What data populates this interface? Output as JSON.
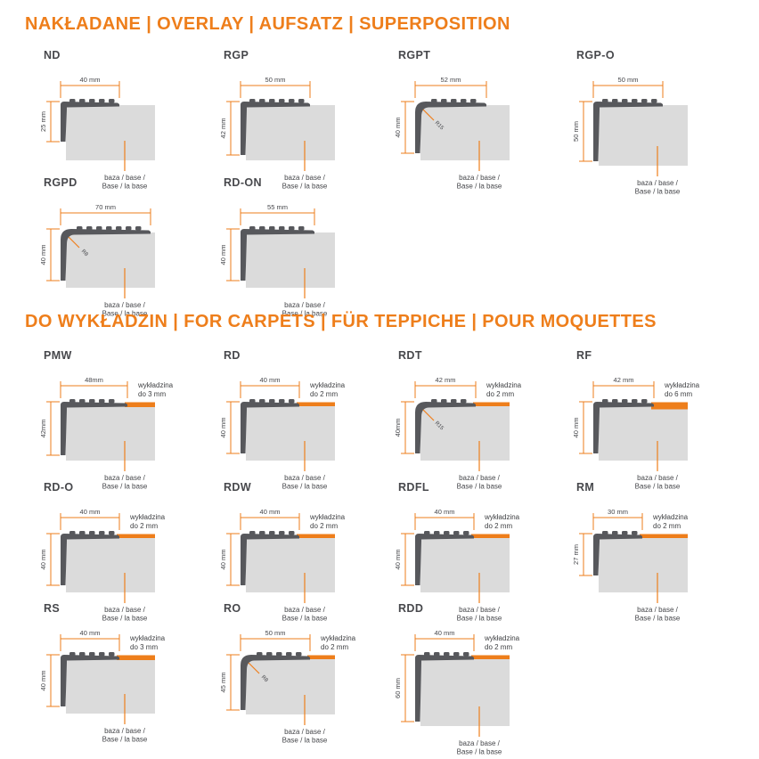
{
  "colors": {
    "accent": "#EE7E1B",
    "profile_dark": "#57585C",
    "base_gray": "#DBDBDB",
    "text_dark": "#45464A"
  },
  "sections": [
    {
      "id": "overlay",
      "title": "NAKŁADANE | OVERLAY | AUFSATZ | SUPERPOSITION",
      "base_caption_line1": "baza / base /",
      "base_caption_line2": "Base / la base",
      "profiles": [
        {
          "name": "ND",
          "width_label": "40 mm",
          "height_label": "25 mm",
          "width_mm": 40,
          "height_mm": 25
        },
        {
          "name": "RGP",
          "width_label": "50 mm",
          "height_label": "42 mm",
          "width_mm": 50,
          "height_mm": 42
        },
        {
          "name": "RGPT",
          "width_label": "52 mm",
          "height_label": "40 mm",
          "width_mm": 52,
          "height_mm": 40,
          "radius_label": "R15"
        },
        {
          "name": "RGP-O",
          "width_label": "50 mm",
          "height_label": "50 mm",
          "width_mm": 50,
          "height_mm": 50
        },
        {
          "name": "RGPD",
          "width_label": "70 mm",
          "height_label": "40 mm",
          "width_mm": 70,
          "height_mm": 40,
          "radius_label": "R8"
        },
        {
          "name": "RD-ON",
          "width_label": "55 mm",
          "height_label": "40 mm",
          "width_mm": 55,
          "height_mm": 40
        }
      ]
    },
    {
      "id": "carpets",
      "title": "DO WYKŁADZIN | FOR CARPETS | FÜR TEPPICHE | POUR MOQUETTES",
      "base_caption_line1": "baza / base /",
      "base_caption_line2": "Base / la base",
      "carpet_word": "wykładzina",
      "profiles": [
        {
          "name": "PMW",
          "width_label": "48mm",
          "height_label": "42mm",
          "width_mm": 48,
          "height_mm": 42,
          "carpet_label": "do 3 mm",
          "carpet_mm": 3
        },
        {
          "name": "RD",
          "width_label": "40 mm",
          "height_label": "40 mm",
          "width_mm": 40,
          "height_mm": 40,
          "carpet_label": "do 2 mm",
          "carpet_mm": 2
        },
        {
          "name": "RDT",
          "width_label": "42 mm",
          "height_label": "40mm",
          "width_mm": 42,
          "height_mm": 40,
          "carpet_label": "do 2 mm",
          "carpet_mm": 2,
          "radius_label": "R15"
        },
        {
          "name": "RF",
          "width_label": "42 mm",
          "height_label": "40 mm",
          "width_mm": 42,
          "height_mm": 40,
          "carpet_label": "do 6 mm",
          "carpet_mm": 6
        },
        {
          "name": "RD-O",
          "width_label": "40 mm",
          "height_label": "40 mm",
          "width_mm": 40,
          "height_mm": 40,
          "carpet_label": "do 2 mm",
          "carpet_mm": 2
        },
        {
          "name": "RDW",
          "width_label": "40 mm",
          "height_label": "40 mm",
          "width_mm": 40,
          "height_mm": 40,
          "carpet_label": "do 2 mm",
          "carpet_mm": 2
        },
        {
          "name": "RDFL",
          "width_label": "40 mm",
          "height_label": "40 mm",
          "width_mm": 40,
          "height_mm": 40,
          "carpet_label": "do 2 mm",
          "carpet_mm": 2
        },
        {
          "name": "RM",
          "width_label": "30 mm",
          "height_label": "27 mm",
          "width_mm": 30,
          "height_mm": 27,
          "carpet_label": "do 2 mm",
          "carpet_mm": 2
        },
        {
          "name": "RS",
          "width_label": "40 mm",
          "height_label": "40 mm",
          "width_mm": 40,
          "height_mm": 40,
          "carpet_label": "do 3 mm",
          "carpet_mm": 3
        },
        {
          "name": "RO",
          "width_label": "50 mm",
          "height_label": "45 mm",
          "width_mm": 50,
          "height_mm": 45,
          "carpet_label": "do 2 mm",
          "carpet_mm": 2,
          "radius_label": "R8"
        },
        {
          "name": "RDD",
          "width_label": "40 mm",
          "height_label": "60 mm",
          "width_mm": 40,
          "height_mm": 60,
          "carpet_label": "do 2 mm",
          "carpet_mm": 2
        }
      ]
    }
  ]
}
